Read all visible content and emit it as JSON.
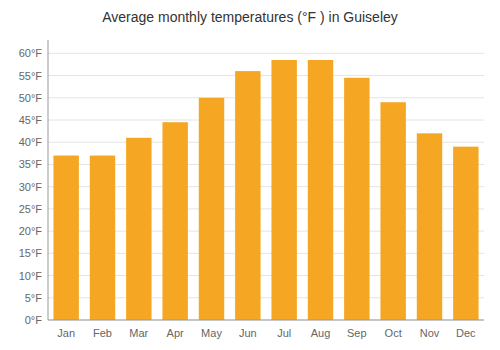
{
  "chart_data": {
    "type": "bar",
    "title": "Average monthly temperatures (°F ) in Guiseley",
    "categories": [
      "Jan",
      "Feb",
      "Mar",
      "Apr",
      "May",
      "Jun",
      "Jul",
      "Aug",
      "Sep",
      "Oct",
      "Nov",
      "Dec"
    ],
    "values": [
      37,
      37,
      41,
      44.5,
      50,
      56,
      58.5,
      58.5,
      54.5,
      49,
      42,
      39
    ],
    "color": "#F5A623",
    "ylim": [
      0,
      63
    ],
    "yticks": [
      {
        "value": 0,
        "label": "0°F"
      },
      {
        "value": 5,
        "label": "5°F"
      },
      {
        "value": 10,
        "label": "10°F"
      },
      {
        "value": 15,
        "label": "15°F"
      },
      {
        "value": 20,
        "label": "20°F"
      },
      {
        "value": 25,
        "label": "25°F"
      },
      {
        "value": 30,
        "label": "30°F"
      },
      {
        "value": 35,
        "label": "35°F"
      },
      {
        "value": 40,
        "label": "40°F"
      },
      {
        "value": 45,
        "label": "45°F"
      },
      {
        "value": 50,
        "label": "50°F"
      },
      {
        "value": 55,
        "label": "55°F"
      },
      {
        "value": 60,
        "label": "60°F"
      }
    ],
    "grid": true
  }
}
